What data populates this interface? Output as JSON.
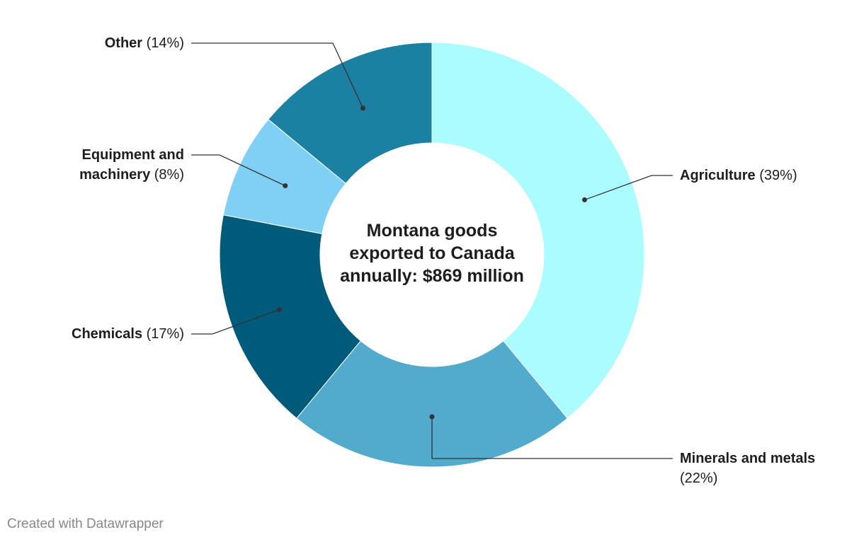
{
  "chart_data": {
    "type": "donut",
    "center_text": "Montana goods exported to Canada annually: $869 million",
    "categories": [
      "Agriculture",
      "Minerals and metals",
      "Chemicals",
      "Equipment and machinery",
      "Other"
    ],
    "values": [
      39,
      22,
      17,
      8,
      14
    ],
    "value_labels": [
      "(39%)",
      "(22%)",
      "(17%)",
      "(8%)",
      "(14%)"
    ],
    "colors": [
      "#abfcfe",
      "#52aacd",
      "#005a7a",
      "#80d0f5",
      "#1c80a2"
    ],
    "footer": "Created with Datawrapper"
  }
}
